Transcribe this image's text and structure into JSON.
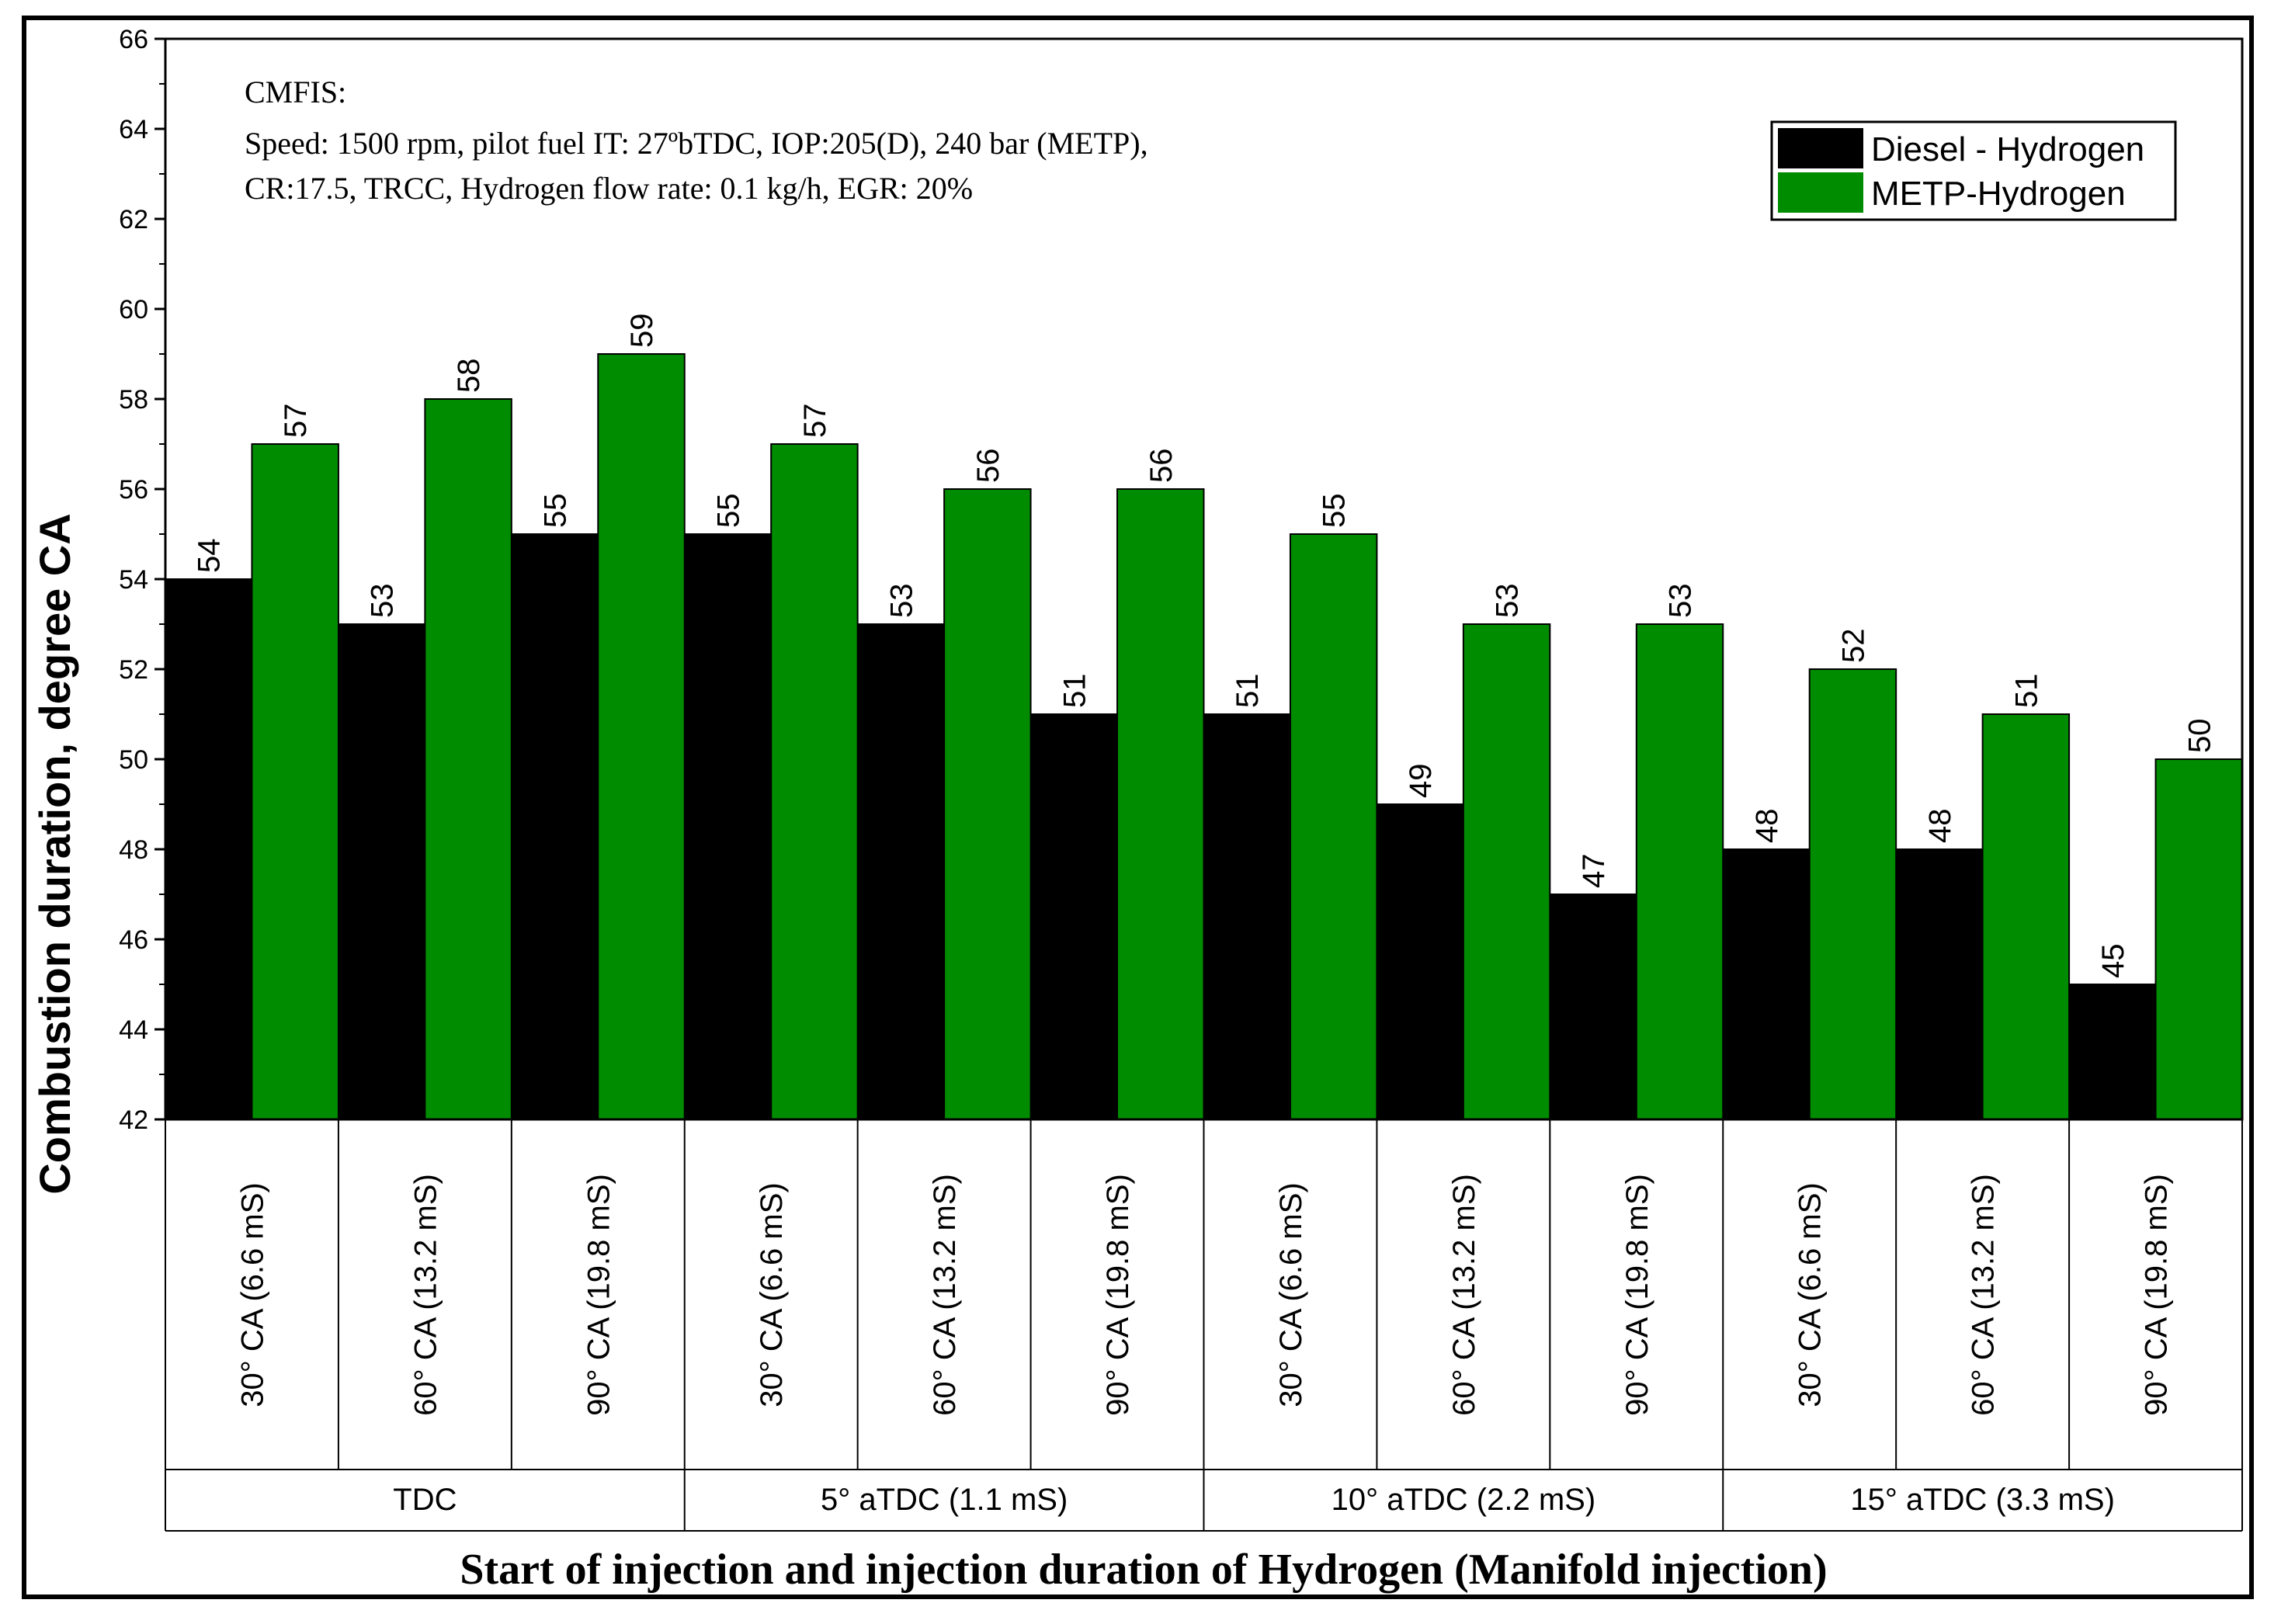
{
  "chart_data": {
    "type": "bar",
    "title": "",
    "annotation": {
      "line1": "CMFIS:",
      "line2": "Speed: 1500 rpm, pilot fuel IT: 27ºbTDC, IOP:205(D), 240 bar (METP),",
      "line3": "CR:17.5, TRCC, Hydrogen flow rate: 0.1 kg/h, EGR: 20%"
    },
    "ylabel": "Combustion duration, degree CA",
    "xlabel": "Start of injection and injection duration of Hydrogen (Manifold injection)",
    "ylim": [
      42,
      66
    ],
    "yticks": [
      "42",
      "44",
      "46",
      "48",
      "50",
      "52",
      "54",
      "56",
      "58",
      "60",
      "62",
      "64",
      "66"
    ],
    "categories": [
      "30° CA (6.6 mS)",
      "60° CA (13.2 mS)",
      "90° CA (19.8 mS)",
      "30° CA (6.6 mS)",
      "60° CA (13.2 mS)",
      "90° CA (19.8 mS)",
      "30° CA (6.6 mS)",
      "60° CA (13.2 mS)",
      "90° CA (19.8 mS)",
      "30° CA (6.6 mS)",
      "60° CA (13.2 mS)",
      "90° CA (19.8 mS)"
    ],
    "groups": [
      "TDC",
      "5° aTDC (1.1 mS)",
      "10° aTDC (2.2 mS)",
      "15° aTDC (3.3 mS)"
    ],
    "series": [
      {
        "name": "Diesel - Hydrogen",
        "color": "#000000",
        "values": [
          54,
          53,
          55,
          55,
          53,
          51,
          51,
          49,
          47,
          48,
          48,
          45
        ]
      },
      {
        "name": "METP-Hydrogen",
        "color": "#008C00",
        "values": [
          57,
          58,
          59,
          57,
          56,
          56,
          55,
          53,
          53,
          52,
          51,
          50
        ]
      }
    ],
    "legend_position": "top-right",
    "grid": false
  }
}
